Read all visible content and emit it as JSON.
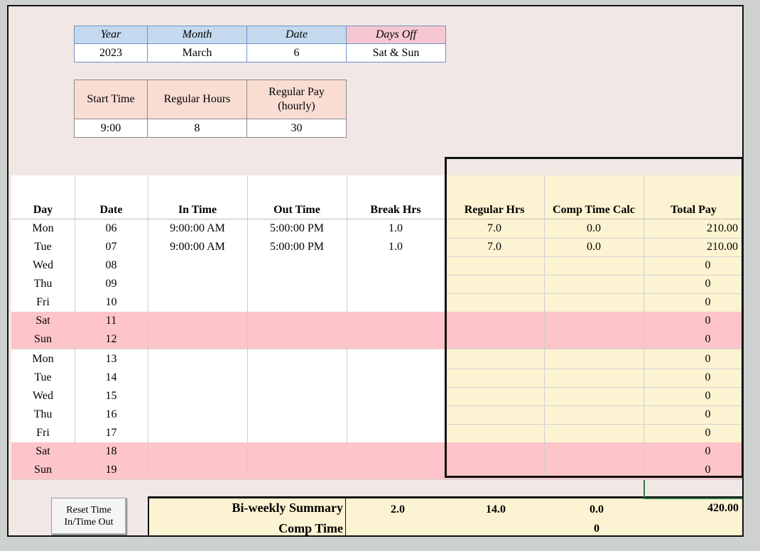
{
  "date_header": {
    "labels": [
      "Year",
      "Month",
      "Date",
      "Days Off"
    ],
    "values": [
      "2023",
      "March",
      "6",
      "Sat & Sun"
    ]
  },
  "settings": {
    "labels": [
      "Start Time",
      "Regular Hours",
      "Regular Pay\n(hourly)"
    ],
    "values": [
      "9:00",
      "8",
      "30"
    ]
  },
  "columns": [
    "Day",
    "Date",
    "In Time",
    "Out Time",
    "Break Hrs",
    "Regular Hrs",
    "Comp Time Calc",
    "Total Pay"
  ],
  "rows": [
    {
      "day": "Mon",
      "date": "06",
      "in": "9:00:00 AM",
      "out": "5:00:00 PM",
      "brk": "1.0",
      "reg": "7.0",
      "comp": "0.0",
      "pay": "210.00",
      "weekend": false
    },
    {
      "day": "Tue",
      "date": "07",
      "in": "9:00:00 AM",
      "out": "5:00:00 PM",
      "brk": "1.0",
      "reg": "7.0",
      "comp": "0.0",
      "pay": "210.00",
      "weekend": false
    },
    {
      "day": "Wed",
      "date": "08",
      "in": "",
      "out": "",
      "brk": "",
      "reg": "",
      "comp": "",
      "pay": "0",
      "weekend": false
    },
    {
      "day": "Thu",
      "date": "09",
      "in": "",
      "out": "",
      "brk": "",
      "reg": "",
      "comp": "",
      "pay": "0",
      "weekend": false
    },
    {
      "day": "Fri",
      "date": "10",
      "in": "",
      "out": "",
      "brk": "",
      "reg": "",
      "comp": "",
      "pay": "0",
      "weekend": false
    },
    {
      "day": "Sat",
      "date": "11",
      "in": "",
      "out": "",
      "brk": "",
      "reg": "",
      "comp": "",
      "pay": "0",
      "weekend": true
    },
    {
      "day": "Sun",
      "date": "12",
      "in": "",
      "out": "",
      "brk": "",
      "reg": "",
      "comp": "",
      "pay": "0",
      "weekend": true
    },
    {
      "day": "Mon",
      "date": "13",
      "in": "",
      "out": "",
      "brk": "",
      "reg": "",
      "comp": "",
      "pay": "0",
      "weekend": false
    },
    {
      "day": "Tue",
      "date": "14",
      "in": "",
      "out": "",
      "brk": "",
      "reg": "",
      "comp": "",
      "pay": "0",
      "weekend": false
    },
    {
      "day": "Wed",
      "date": "15",
      "in": "",
      "out": "",
      "brk": "",
      "reg": "",
      "comp": "",
      "pay": "0",
      "weekend": false
    },
    {
      "day": "Thu",
      "date": "16",
      "in": "",
      "out": "",
      "brk": "",
      "reg": "",
      "comp": "",
      "pay": "0",
      "weekend": false
    },
    {
      "day": "Fri",
      "date": "17",
      "in": "",
      "out": "",
      "brk": "",
      "reg": "",
      "comp": "",
      "pay": "0",
      "weekend": false
    },
    {
      "day": "Sat",
      "date": "18",
      "in": "",
      "out": "",
      "brk": "",
      "reg": "",
      "comp": "",
      "pay": "0",
      "weekend": true
    },
    {
      "day": "Sun",
      "date": "19",
      "in": "",
      "out": "",
      "brk": "",
      "reg": "",
      "comp": "",
      "pay": "0",
      "weekend": true
    }
  ],
  "reset_button": "Reset Time\nIn/Time Out",
  "summary": {
    "label": "Bi-weekly Summary",
    "comp_label": "Comp Time",
    "break_total": "2.0",
    "regular_total": "14.0",
    "comp_total": "0.0",
    "pay_total": "420.00",
    "comp_time": "0"
  },
  "colors": {
    "header_blue": "#c4d9ee",
    "days_off_pink": "#f6c7d0",
    "settings_peach": "#f9ddd3",
    "weekend_row": "#fdc5c9",
    "calc_yellow": "#fcf3d2",
    "selection_green": "#2d7a44"
  }
}
